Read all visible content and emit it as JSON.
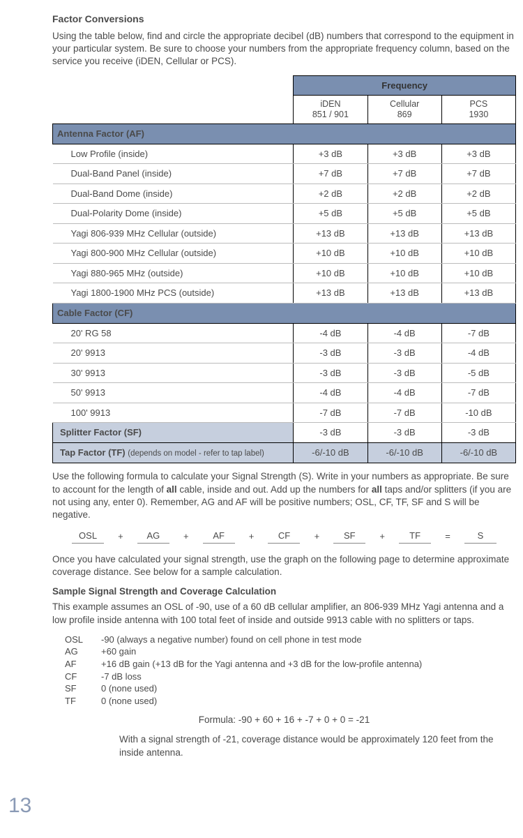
{
  "title": "Factor Conversions",
  "intro": "Using the table below, find and circle the appropriate decibel (dB) numbers that correspond to the equipment in your particular system. Be sure to choose your numbers from the appropriate frequency column, based on the service you receive (iDEN, Cellular or PCS).",
  "freq_label": "Frequency",
  "cols": {
    "iden_l1": "iDEN",
    "iden_l2": "851 / 901",
    "cell_l1": "Cellular",
    "cell_l2": "869",
    "pcs_l1": "PCS",
    "pcs_l2": "1930"
  },
  "af_header": "Antenna Factor (AF)",
  "af_rows": [
    {
      "name": "Low Profile (inside)",
      "v": [
        "+3 dB",
        "+3 dB",
        "+3 dB"
      ]
    },
    {
      "name": "Dual-Band Panel (inside)",
      "v": [
        "+7 dB",
        "+7 dB",
        "+7 dB"
      ]
    },
    {
      "name": "Dual-Band Dome (inside)",
      "v": [
        "+2 dB",
        "+2 dB",
        "+2 dB"
      ]
    },
    {
      "name": "Dual-Polarity Dome (inside)",
      "v": [
        "+5 dB",
        "+5 dB",
        "+5 dB"
      ]
    },
    {
      "name": "Yagi 806-939 MHz Cellular (outside)",
      "v": [
        "+13 dB",
        "+13 dB",
        "+13 dB"
      ]
    },
    {
      "name": "Yagi 800-900 MHz Cellular (outside)",
      "v": [
        "+10 dB",
        "+10 dB",
        "+10 dB"
      ]
    },
    {
      "name": "Yagi 880-965 MHz (outside)",
      "v": [
        "+10 dB",
        "+10 dB",
        "+10 dB"
      ]
    },
    {
      "name": "Yagi 1800-1900 MHz PCS (outside)",
      "v": [
        "+13 dB",
        "+13 dB",
        "+13 dB"
      ]
    }
  ],
  "cf_header": "Cable Factor (CF)",
  "cf_rows": [
    {
      "name": "20' RG 58",
      "v": [
        "-4 dB",
        "-4 dB",
        "-7 dB"
      ]
    },
    {
      "name": "20' 9913",
      "v": [
        "-3 dB",
        "-3 dB",
        "-4 dB"
      ]
    },
    {
      "name": "30' 9913",
      "v": [
        "-3 dB",
        "-3 dB",
        "-5 dB"
      ]
    },
    {
      "name": "50' 9913",
      "v": [
        "-4 dB",
        "-4 dB",
        "-7 dB"
      ]
    },
    {
      "name": "100' 9913",
      "v": [
        "-7 dB",
        "-7 dB",
        "-10 dB"
      ]
    }
  ],
  "sf_row": {
    "name": "Splitter Factor (SF)",
    "v": [
      "-3 dB",
      "-3 dB",
      "-3 dB"
    ]
  },
  "tf_row": {
    "name": "Tap Factor (TF) ",
    "sub": "(depends on model - refer to tap label)",
    "v": [
      "-6/-10 dB",
      "-6/-10 dB",
      "-6/-10 dB"
    ]
  },
  "after_table": "Use the following formula to calculate your Signal Strength (S). Write in your numbers as appropriate. Be sure to account for the length of ",
  "after_table_b1": "all",
  "after_table_2": " cable, inside and out. Add up the numbers for ",
  "after_table_b2": "all",
  "after_table_3": " taps and/or splitters (if you are not using any, enter 0). Remember, AG and AF will be positive numbers; OSL, CF, TF, SF and S will be negative.",
  "formula": {
    "items": [
      "OSL",
      "AG",
      "AF",
      "CF",
      "SF",
      "TF",
      "S"
    ],
    "eq": "=",
    "plus": "+"
  },
  "once_text": "Once you have calculated your signal strength, use the graph on the following page to determine approximate coverage distance. See below for a sample calculation.",
  "sample_title": "Sample Signal Strength and Coverage Calculation",
  "sample_intro": "This example assumes an OSL of -90, use of a 60 dB cellular amplifier, an 806-939 MHz Yagi antenna and a low profile inside antenna with 100 total feet of inside and outside 9913 cable with no splitters or taps.",
  "sample_rows": [
    {
      "k": "OSL",
      "t": "-90 (always a negative number) found on cell phone in test mode"
    },
    {
      "k": "AG",
      "t": "+60 gain"
    },
    {
      "k": "AF",
      "t": "+16 dB gain (+13 dB for the Yagi antenna and +3 dB for the low-profile antenna)"
    },
    {
      "k": "CF",
      "t": "-7 dB loss"
    },
    {
      "k": "SF",
      "t": "0 (none used)"
    },
    {
      "k": "TF",
      "t": "0 (none used)"
    }
  ],
  "formula_line": "Formula:  -90  +  60  +  16  +  -7  +  0  +  0  =  -21",
  "closing": "With a signal strength of -21, coverage distance would be approximately 120 feet from the inside antenna.",
  "page_number": "13",
  "colors": {
    "header_bg": "#7a8fb0",
    "alt_bg": "#c6cfde"
  }
}
